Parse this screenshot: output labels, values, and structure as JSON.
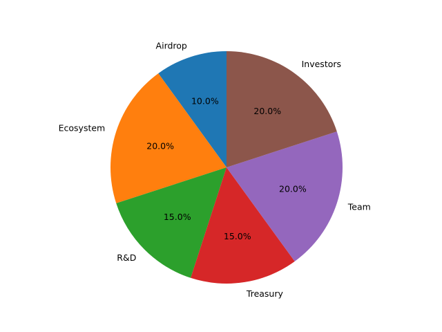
{
  "chart_data": {
    "type": "pie",
    "start_angle_deg": 90,
    "direction": "counterclockwise",
    "categories": [
      "Airdrop",
      "Ecosystem",
      "R&D",
      "Treasury",
      "Team",
      "Investors"
    ],
    "values": [
      10.0,
      20.0,
      15.0,
      15.0,
      20.0,
      20.0
    ],
    "value_labels": [
      "10.0%",
      "20.0%",
      "15.0%",
      "15.0%",
      "20.0%",
      "20.0%"
    ],
    "colors": [
      "#1f77b4",
      "#ff7f0e",
      "#2ca02c",
      "#d62728",
      "#9467bd",
      "#8c564b"
    ],
    "title": "",
    "legend": "none"
  }
}
